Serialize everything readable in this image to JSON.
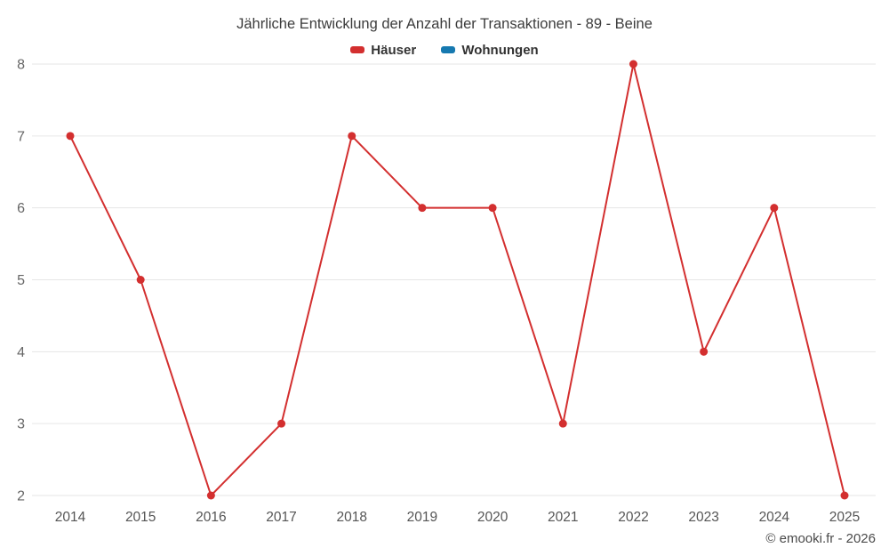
{
  "title": "Jährliche Entwicklung der Anzahl der Transaktionen - 89 - Beine",
  "legend": [
    {
      "label": "Häuser",
      "color": "#d32f2f"
    },
    {
      "label": "Wohnungen",
      "color": "#1679b0"
    }
  ],
  "footer": "© emooki.fr - 2026",
  "chart_data": {
    "type": "line",
    "x": [
      "2014",
      "2015",
      "2016",
      "2017",
      "2018",
      "2019",
      "2020",
      "2021",
      "2022",
      "2023",
      "2024",
      "2025"
    ],
    "series": [
      {
        "name": "Häuser",
        "color": "#d32f2f",
        "values": [
          7,
          5,
          2,
          3,
          7,
          6,
          6,
          3,
          8,
          4,
          6,
          2
        ]
      },
      {
        "name": "Wohnungen",
        "color": "#1679b0",
        "values": []
      }
    ],
    "ylim": [
      2,
      8
    ],
    "yticks": [
      2,
      3,
      4,
      5,
      6,
      7,
      8
    ],
    "grid": "horizontal",
    "legend_position": "top",
    "title": "Jährliche Entwicklung der Anzahl der Transaktionen - 89 - Beine",
    "xlabel": "",
    "ylabel": ""
  }
}
